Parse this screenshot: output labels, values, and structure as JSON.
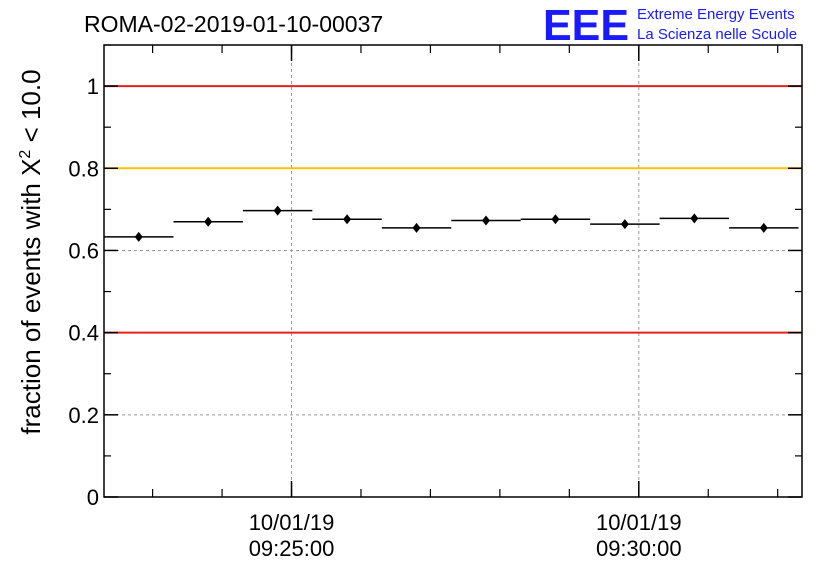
{
  "chart_data": {
    "type": "scatter",
    "title": "ROMA-02-2019-01-10-00037",
    "ylabel_prefix": "fraction of events with ",
    "ylabel_symbol": "X",
    "ylabel_sup": "2",
    "ylabel_suffix": " < 10.0",
    "xlabel": "",
    "ylim": [
      0,
      1.1
    ],
    "y_ticks": [
      "0",
      "0.2",
      "0.4",
      "0.6",
      "0.8",
      "1"
    ],
    "x_ticks": [
      {
        "date": "10/01/19",
        "time": "09:25:00"
      },
      {
        "date": "10/01/19",
        "time": "09:30:00"
      }
    ],
    "points": [
      {
        "y": 0.633,
        "err": 0.009
      },
      {
        "y": 0.67,
        "err": 0.009
      },
      {
        "y": 0.697,
        "err": 0.009
      },
      {
        "y": 0.676,
        "err": 0.009
      },
      {
        "y": 0.655,
        "err": 0.009
      },
      {
        "y": 0.673,
        "err": 0.009
      },
      {
        "y": 0.676,
        "err": 0.009
      },
      {
        "y": 0.664,
        "err": 0.009
      },
      {
        "y": 0.678,
        "err": 0.009
      },
      {
        "y": 0.655,
        "err": 0.009
      }
    ],
    "reference_lines": [
      {
        "y": 1.0,
        "color": "#e8201a"
      },
      {
        "y": 0.8,
        "color": "#ffc000"
      },
      {
        "y": 0.4,
        "color": "#e8201a"
      }
    ]
  },
  "logo": {
    "mark": "EEE",
    "line1": "Extreme Energy Events",
    "line2": "La Scienza nelle Scuole",
    "color": "#1a1aff"
  }
}
